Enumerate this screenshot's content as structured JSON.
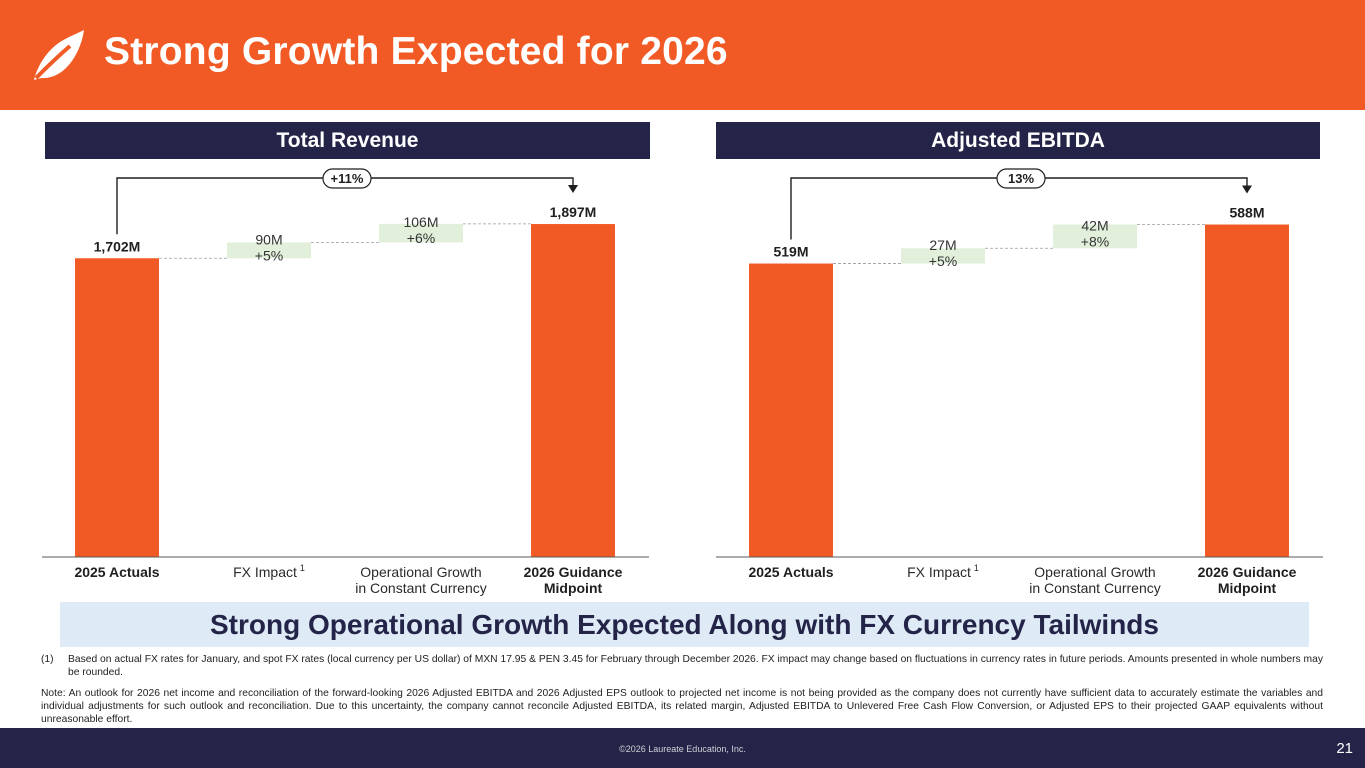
{
  "header": {
    "title": "Strong Growth Expected for 2026",
    "bg_color": "#f15a24",
    "logo_icon": "laureate-leaf-icon"
  },
  "panels": {
    "revenue_title": "Total Revenue",
    "ebitda_title": "Adjusted EBITDA"
  },
  "chart_data": [
    {
      "type": "waterfall",
      "title": "Total Revenue",
      "categories": [
        "2025 Actuals",
        "FX Impact",
        "Operational Growth in Constant Currency",
        "2026 Guidance Midpoint"
      ],
      "category_lines": [
        [
          "2025 Actuals"
        ],
        [
          "FX Impact"
        ],
        [
          "Operational Growth",
          "in Constant Currency"
        ],
        [
          "2026 Guidance",
          "Midpoint"
        ]
      ],
      "category_bold": [
        true,
        false,
        false,
        true
      ],
      "category_footnote": [
        null,
        "1",
        null,
        null
      ],
      "values": [
        1702,
        90,
        106,
        1897
      ],
      "unit": "M",
      "kinds": [
        "total",
        "step",
        "step",
        "total"
      ],
      "labels": [
        "1,702M",
        "90M\n+5%",
        "106M\n+6%",
        "1,897M"
      ],
      "growth_badge": "+11%",
      "ylim": [
        0,
        1920
      ],
      "total_color": "#f15a24",
      "step_color": "#e2efda"
    },
    {
      "type": "waterfall",
      "title": "Adjusted EBITDA",
      "categories": [
        "2025 Actuals",
        "FX Impact",
        "Operational Growth in Constant Currency",
        "2026 Guidance Midpoint"
      ],
      "category_lines": [
        [
          "2025 Actuals"
        ],
        [
          "FX Impact"
        ],
        [
          "Operational Growth",
          "in Constant Currency"
        ],
        [
          "2026 Guidance",
          "Midpoint"
        ]
      ],
      "category_bold": [
        true,
        false,
        false,
        true
      ],
      "category_footnote": [
        null,
        "1",
        null,
        null
      ],
      "values": [
        519,
        27,
        42,
        588
      ],
      "unit": "M",
      "kinds": [
        "total",
        "step",
        "step",
        "total"
      ],
      "labels": [
        "519M",
        "27M\n+5%",
        "42M\n+8%",
        "588M"
      ],
      "growth_badge": "13%",
      "ylim": [
        0,
        596
      ],
      "total_color": "#f15a24",
      "step_color": "#e2efda"
    }
  ],
  "banner": "Strong Operational Growth Expected Along with FX Currency Tailwinds",
  "footnote": {
    "num": "(1)",
    "text": "Based on actual FX rates for January, and spot FX rates (local currency per US dollar) of MXN 17.95 & PEN 3.45 for February through December 2026.  FX impact may change based on fluctuations in currency rates in future periods.  Amounts presented in whole numbers may be rounded."
  },
  "note": "Note: An outlook for 2026 net income and reconciliation of the forward-looking 2026 Adjusted EBITDA and 2026 Adjusted EPS outlook to projected net income is not being provided as the company does not currently have sufficient data to accurately estimate the variables and individual adjustments for such outlook and reconciliation.  Due to this uncertainty, the company cannot reconcile Adjusted EBITDA, its related margin, Adjusted EBITDA to Unlevered Free Cash Flow Conversion, or Adjusted EPS to their projected GAAP equivalents without unreasonable effort.",
  "footer": {
    "copyright": "©2026 Laureate Education, Inc.",
    "page_number": "21"
  }
}
